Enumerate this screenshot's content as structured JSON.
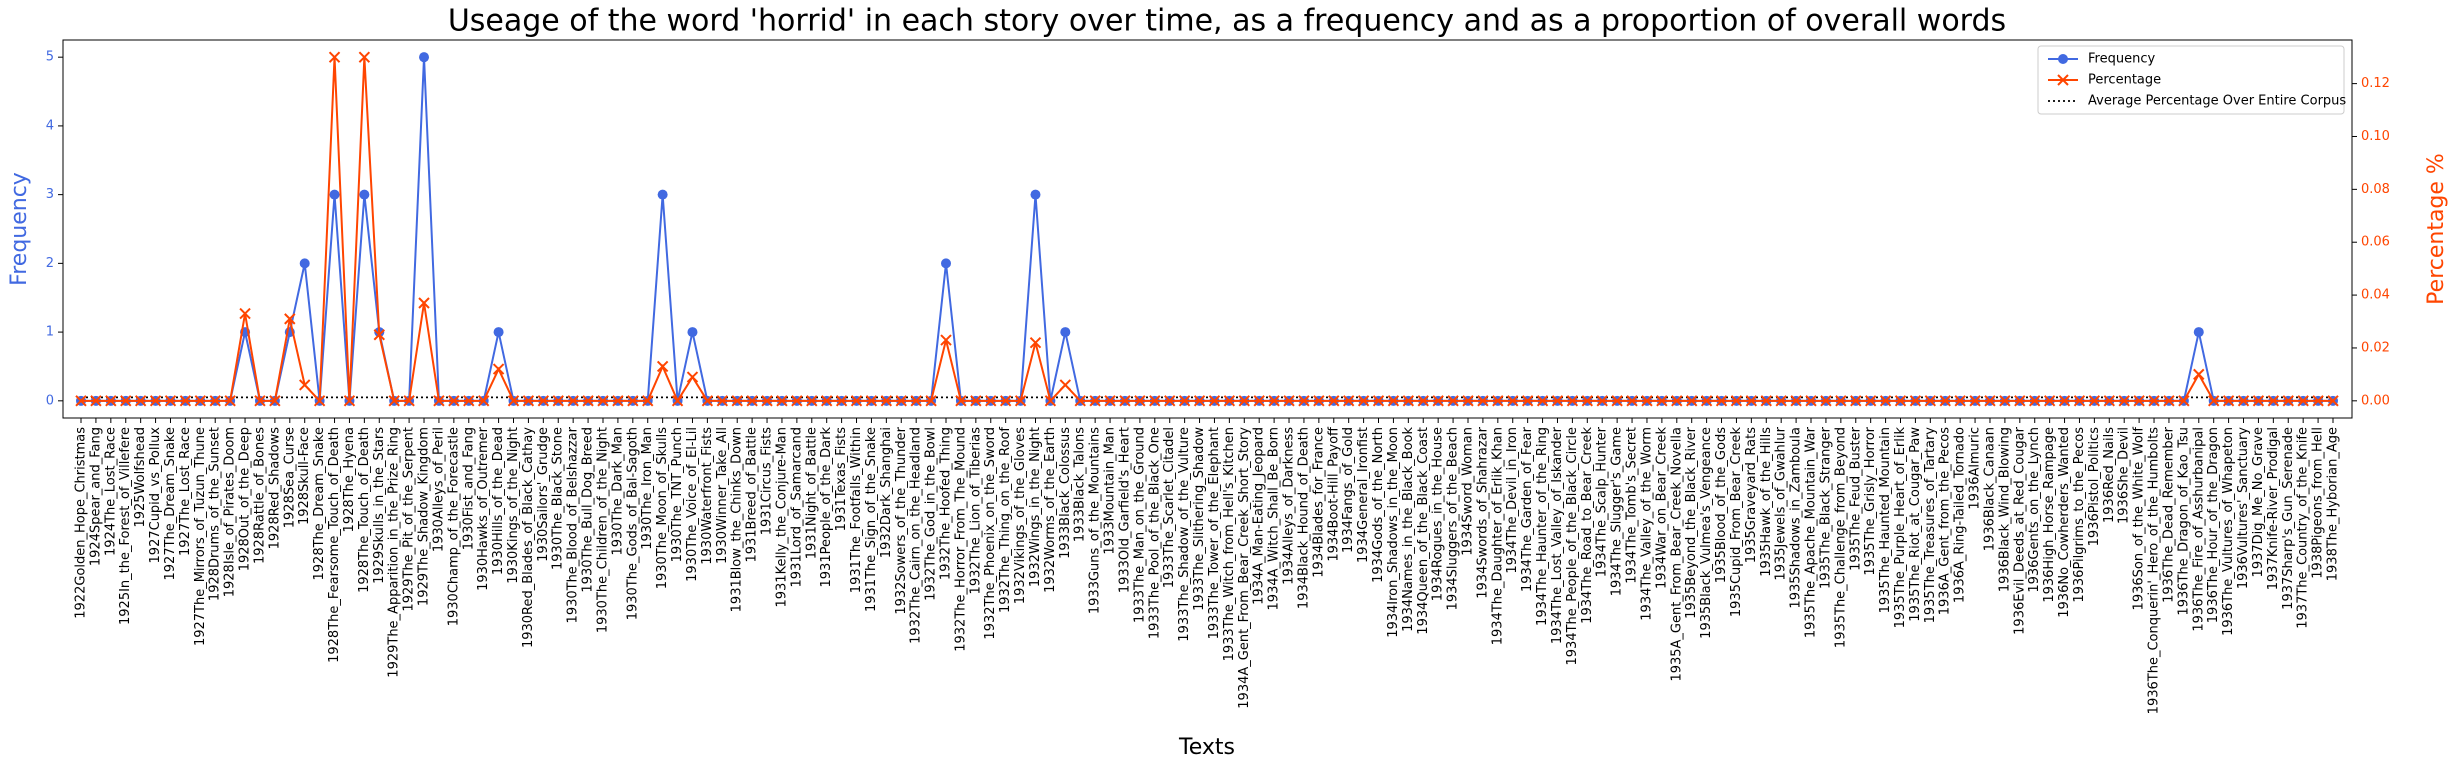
{
  "chart_data": {
    "type": "line",
    "title": "Useage of the word 'horrid' in each story over time, as a frequency and as a proportion of overall words",
    "x_label": "Texts",
    "y_label": "Frequency",
    "y2_label": "Percentage %",
    "categories": [
      "1922Golden_Hope_Christmas",
      "1924Spear_and_Fang",
      "1924The_Lost_Race",
      "1925In_the_Forest_of_Villefere",
      "1925Wolfshead",
      "1927Cupid_vs_Pollux",
      "1927The_Dream_Snake",
      "1927The_Lost_Race",
      "1927The_Mirrors_of_Tuzun_Thune",
      "1928Drums_of_the_Sunset",
      "1928Isle_of_Pirates_Doom",
      "1928Out_of_the_Deep",
      "1928Rattle_of_Bones",
      "1928Red_Shadows",
      "1928Sea_Curse",
      "1928Skull-Face",
      "1928The_Dream_Snake",
      "1928The_Fearsome_Touch_of_Death",
      "1928The_Hyena",
      "1928The_Touch_of_Death",
      "1929Skulls_in_the_Stars",
      "1929The_Apparition_in_the_Prize_Ring",
      "1929The_Pit_of_the_Serpent",
      "1929The_Shadow_Kingdom",
      "1930Alleys_of_Peril",
      "1930Champ_of_the_Forecastle",
      "1930Fist_and_Fang",
      "1930Hawks_of_Outremer",
      "1930Hills_of_the_Dead",
      "1930Kings_of_the_Night",
      "1930Red_Blades_of_Black_Cathay",
      "1930Sailors'_Grudge",
      "1930The_Black_Stone",
      "1930The_Blood_of_Belshazzar",
      "1930The_Bull_Dog_Breed",
      "1930The_Children_of_the_Night",
      "1930The_Dark_Man",
      "1930The_Gods_of_Bal-Sagoth",
      "1930The_Iron_Man",
      "1930The_Moon_of_Skulls",
      "1930The_TNT_Punch",
      "1930The_Voice_of_El-Lil",
      "1930Waterfront_Fists",
      "1930Winner_Take_All",
      "1931Blow_the_Chinks_Down",
      "1931Breed_of_Battle",
      "1931Circus_Fists",
      "1931Kelly_the_Conjure-Man",
      "1931Lord_of_Samarcand",
      "1931Night_of_Battle",
      "1931People_of_the_Dark",
      "1931Texas_Fists",
      "1931The_Footfalls_Within",
      "1931The_Sign_of_the_Snake",
      "1932Dark_Shanghai",
      "1932Sowers_of_the_Thunder",
      "1932The_Cairn_on_the_Headland",
      "1932The_God_in_the_Bowl",
      "1932The_Hoofed_Thing",
      "1932The_Horror_From_The_Mound",
      "1932The_Lion_of_Tiberias",
      "1932The_Phoenix_on_the_Sword",
      "1932The_Thing_on_the_Roof",
      "1932Vikings_of_the_Gloves",
      "1932Wings_in_the_Night",
      "1932Worms_of_the_Earth",
      "1933Black_Colossus",
      "1933Black_Talons",
      "1933Guns_of_the_Mountains",
      "1933Mountain_Man",
      "1933Old_Garfield's_Heart",
      "1933The_Man_on_the_Ground",
      "1933The_Pool_of_the_Black_One",
      "1933The_Scarlet_Citadel",
      "1933The_Shadow_of_the_Vulture",
      "1933The_Slithering_Shadow",
      "1933The_Tower_of_the_Elephant",
      "1933The_Witch_from_Hell's_Kitchen",
      "1934A_Gent_From_Bear_Creek_Short_Story",
      "1934A_Man-Eating_Jeopard",
      "1934A_Witch_Shall_Be_Born",
      "1934Alleys_of_Darkness",
      "1934Black_Hound_of_Death",
      "1934Blades_for_France",
      "1934Boot-Hill_Payoff",
      "1934Fangs_of_Gold",
      "1934General_Ironfist",
      "1934Gods_of_the_North",
      "1934Iron_Shadows_in_the_Moon",
      "1934Names_in_the_Black_Book",
      "1934Queen_of_the_Black_Coast",
      "1934Rogues_in_the_House",
      "1934Sluggers_of_the_Beach",
      "1934Sword_Woman",
      "1934Swords_of_Shahrazar",
      "1934The_Daughter_of_Erlik_Khan",
      "1934The_Devil_in_Iron",
      "1934The_Garden_of_Fear",
      "1934The_Haunter_of_the_Ring",
      "1934The_Lost_Valley_of_Iskander",
      "1934The_People_of_the_Black_Circle",
      "1934The_Road_to_Bear_Creek",
      "1934The_Scalp_Hunter",
      "1934The_Slugger's_Game",
      "1934The_Tomb's_Secret",
      "1934The_Valley_of_the_Worm",
      "1934War_on_Bear_Creek",
      "1935A_Gent_From_Bear_Creek_Novella",
      "1935Beyond_the_Black_River",
      "1935Black_Vulmea's_Vengeance",
      "1935Blood_of_the_Gods",
      "1935Cupid_From_Bear_Creek",
      "1935Graveyard_Rats",
      "1935Hawk_of_the_Hills",
      "1935Jewels_of_Gwahlur",
      "1935Shadows_in_Zamboula",
      "1935The_Apache_Mountain_War",
      "1935The_Black_Stranger",
      "1935The_Challenge_from_Beyond",
      "1935The_Feud_Buster",
      "1935The_Grisly_Horror",
      "1935The_Haunted_Mountain",
      "1935The_Purple_Heart_of_Erlik",
      "1935The_Riot_at_Cougar_Paw",
      "1935The_Treasures_of_Tartary",
      "1936A_Gent_from_the_Pecos",
      "1936A_Ring-Tailed_Tornado",
      "1936Almuric",
      "1936Black_Canaan",
      "1936Black_Wind_Blowing",
      "1936Evil_Deeds_at_Red_Cougar",
      "1936Gents_on_the_Lynch",
      "1936High_Horse_Rampage",
      "1936No_Cowherders_Wanted",
      "1936Pilgrims_to_the_Pecos",
      "1936Pistol_Politics",
      "1936Red_Nails",
      "1936She_Devil",
      "1936Son_of_the_White_Wolf",
      "1936The_Conquerin'_Hero_of_the_Humbolts",
      "1936The_Dead_Remember",
      "1936The_Dragon_of_Kao_Tsu",
      "1936The_Fire_of_Asshurbanipal",
      "1936The_Hour_of_the_Dragon",
      "1936The_Vultures_of_Whapeton",
      "1936Vultures'_Sanctuary",
      "1937Dig_Me_No_Grave",
      "1937Knife-River_Prodigal",
      "1937Sharp's_Gun_Serenade",
      "1937The_Country_of_the_Knife",
      "1938Pigeons_from_Hell",
      "1938The_Hyborian_Age"
    ],
    "series": [
      {
        "name": "Frequency",
        "color": "#4169e1",
        "marker": "circle",
        "values": [
          0,
          0,
          0,
          0,
          0,
          0,
          0,
          0,
          0,
          0,
          0,
          1,
          0,
          0,
          1,
          2,
          0,
          3,
          0,
          3,
          1,
          0,
          0,
          5,
          0,
          0,
          0,
          0,
          1,
          0,
          0,
          0,
          0,
          0,
          0,
          0,
          0,
          0,
          0,
          3,
          0,
          1,
          0,
          0,
          0,
          0,
          0,
          0,
          0,
          0,
          0,
          0,
          0,
          0,
          0,
          0,
          0,
          0,
          2,
          0,
          0,
          0,
          0,
          0,
          3,
          0,
          1,
          0,
          0,
          0,
          0,
          0,
          0,
          0,
          0,
          0,
          0,
          0,
          0,
          0,
          0,
          0,
          0,
          0,
          0,
          0,
          0,
          0,
          0,
          0,
          0,
          0,
          0,
          0,
          0,
          0,
          0,
          0,
          0,
          0,
          0,
          0,
          0,
          0,
          0,
          0,
          0,
          0,
          0,
          0,
          0,
          0,
          0,
          0,
          0,
          0,
          0,
          0,
          0,
          0,
          0,
          0,
          0,
          0,
          0,
          0,
          0,
          0,
          0,
          0,
          0,
          0,
          0,
          0,
          0,
          0,
          0,
          0,
          0,
          0,
          0,
          0,
          1,
          0,
          0,
          0,
          0,
          0,
          0,
          0,
          0,
          0
        ]
      },
      {
        "name": "Percentage",
        "color": "#ff4500",
        "marker": "x",
        "axis": "y2",
        "values": [
          0,
          0,
          0,
          0,
          0,
          0,
          0,
          0,
          0,
          0,
          0,
          0.033,
          0,
          0,
          0.031,
          0.006,
          0,
          0.13,
          0,
          0.13,
          0.025,
          0,
          0,
          0.037,
          0,
          0,
          0,
          0,
          0.012,
          0,
          0,
          0,
          0,
          0,
          0,
          0,
          0,
          0,
          0,
          0.013,
          0,
          0.009,
          0,
          0,
          0,
          0,
          0,
          0,
          0,
          0,
          0,
          0,
          0,
          0,
          0,
          0,
          0,
          0,
          0.023,
          0,
          0,
          0,
          0,
          0,
          0.022,
          0,
          0.006,
          0,
          0,
          0,
          0,
          0,
          0,
          0,
          0,
          0,
          0,
          0,
          0,
          0,
          0,
          0,
          0,
          0,
          0,
          0,
          0,
          0,
          0,
          0,
          0,
          0,
          0,
          0,
          0,
          0,
          0,
          0,
          0,
          0,
          0,
          0,
          0,
          0,
          0,
          0,
          0,
          0,
          0,
          0,
          0,
          0,
          0,
          0,
          0,
          0,
          0,
          0,
          0,
          0,
          0,
          0,
          0,
          0,
          0,
          0,
          0,
          0,
          0,
          0,
          0,
          0,
          0,
          0,
          0,
          0,
          0,
          0,
          0,
          0,
          0,
          0,
          0.01,
          0,
          0,
          0,
          0,
          0,
          0,
          0,
          0,
          0
        ]
      }
    ],
    "reference_line": {
      "name": "Average Percentage Over Entire Corpus",
      "value": 0.0013,
      "axis": "y2",
      "color": "#000000"
    },
    "ylim": [
      -0.25,
      5.25
    ],
    "yticks": [
      0,
      1,
      2,
      3,
      4,
      5
    ],
    "y2lim": [
      -0.0065,
      0.1365
    ],
    "y2ticks": [
      {
        "value": 0,
        "label": "0.00"
      },
      {
        "value": 0.02,
        "label": "0.02"
      },
      {
        "value": 0.04,
        "label": "0.04"
      },
      {
        "value": 0.06,
        "label": "0.06"
      },
      {
        "value": 0.08,
        "label": "0.08"
      },
      {
        "value": 0.1,
        "label": "0.10"
      },
      {
        "value": 0.12,
        "label": "0.12"
      }
    ],
    "grid": false,
    "legend": "upper right"
  }
}
